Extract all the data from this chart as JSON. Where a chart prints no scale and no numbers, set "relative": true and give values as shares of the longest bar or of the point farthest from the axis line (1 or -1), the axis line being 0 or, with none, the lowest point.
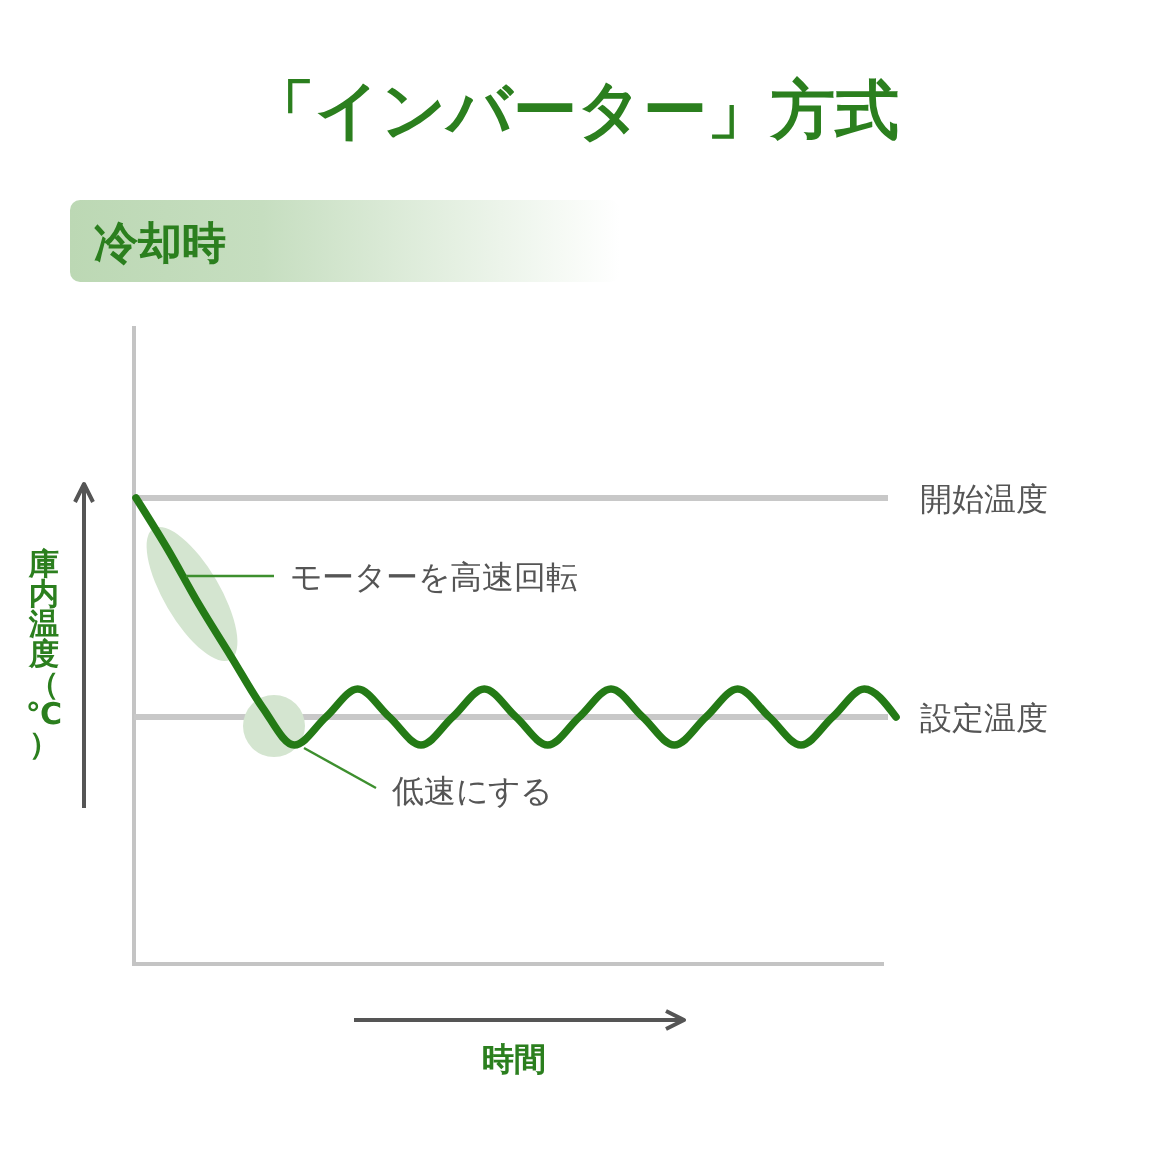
{
  "chart_data": {
    "type": "line",
    "title": "「インバーター」方式",
    "subtitle": "冷却時",
    "xlabel": "時間",
    "ylabel": "庫内温度（℃）",
    "relative": true,
    "categories": [
      null,
      null,
      null,
      null,
      null,
      null,
      null,
      null,
      null,
      null,
      null,
      null,
      null,
      null,
      null,
      null,
      null,
      null,
      null,
      null,
      null,
      null,
      null,
      null,
      null
    ],
    "series": [
      {
        "color": "#247a16",
        "values": [
          1,
          0.89,
          0.77,
          0.66,
          0.55,
          0.47,
          0.53,
          0.59,
          0.53,
          0.47,
          0.53,
          0.59,
          0.53,
          0.47,
          0.53,
          0.59,
          0.53,
          0.47,
          0.53,
          0.59,
          0.53,
          0.47,
          0.53,
          0.59,
          0.53
        ]
      }
    ],
    "ref_lines": [
      {
        "axis": "y",
        "value": 1,
        "label": "開始温度",
        "color": "#c8c8c8"
      },
      {
        "axis": "y",
        "value": 0.53,
        "label": "設定温度",
        "color": "#c8c8c8"
      }
    ],
    "annotations": [
      "モーターを高速回転",
      "低速にする"
    ],
    "line_style": "solid"
  }
}
